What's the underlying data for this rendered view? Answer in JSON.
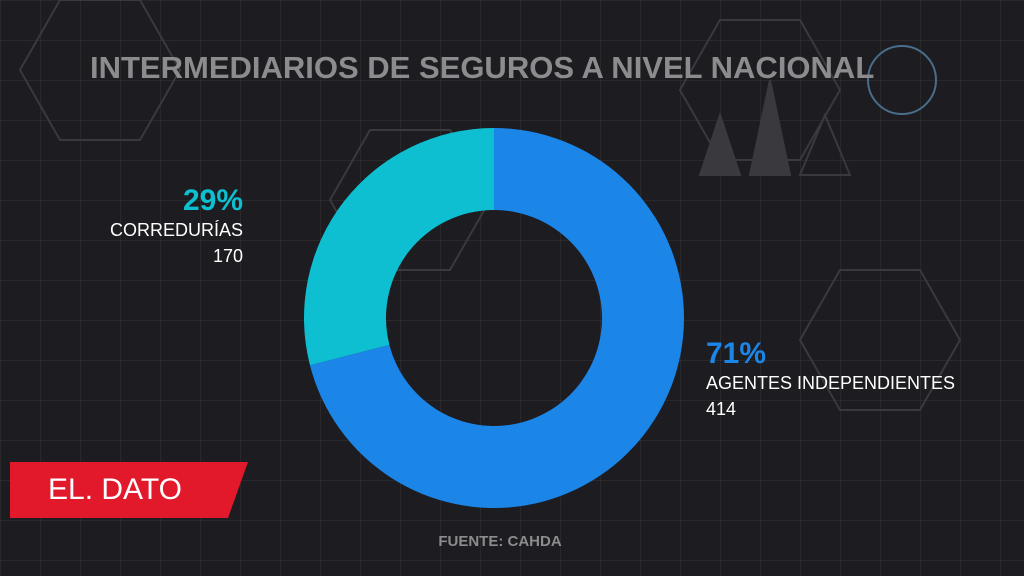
{
  "chart_data": {
    "type": "pie",
    "title": "INTERMEDIARIOS DE SEGUROS A NIVEL NACIONAL",
    "categories": [
      "AGENTES INDEPENDIENTES",
      "CORREDURÍAS"
    ],
    "values": [
      71,
      29
    ],
    "value_labels": [
      "71%",
      "29%"
    ],
    "counts": [
      414,
      170
    ],
    "colors": [
      "#1b86e8",
      "#0dbfd1"
    ],
    "source": "FUENTE: CAHDA"
  },
  "brand": "EL. DATO"
}
